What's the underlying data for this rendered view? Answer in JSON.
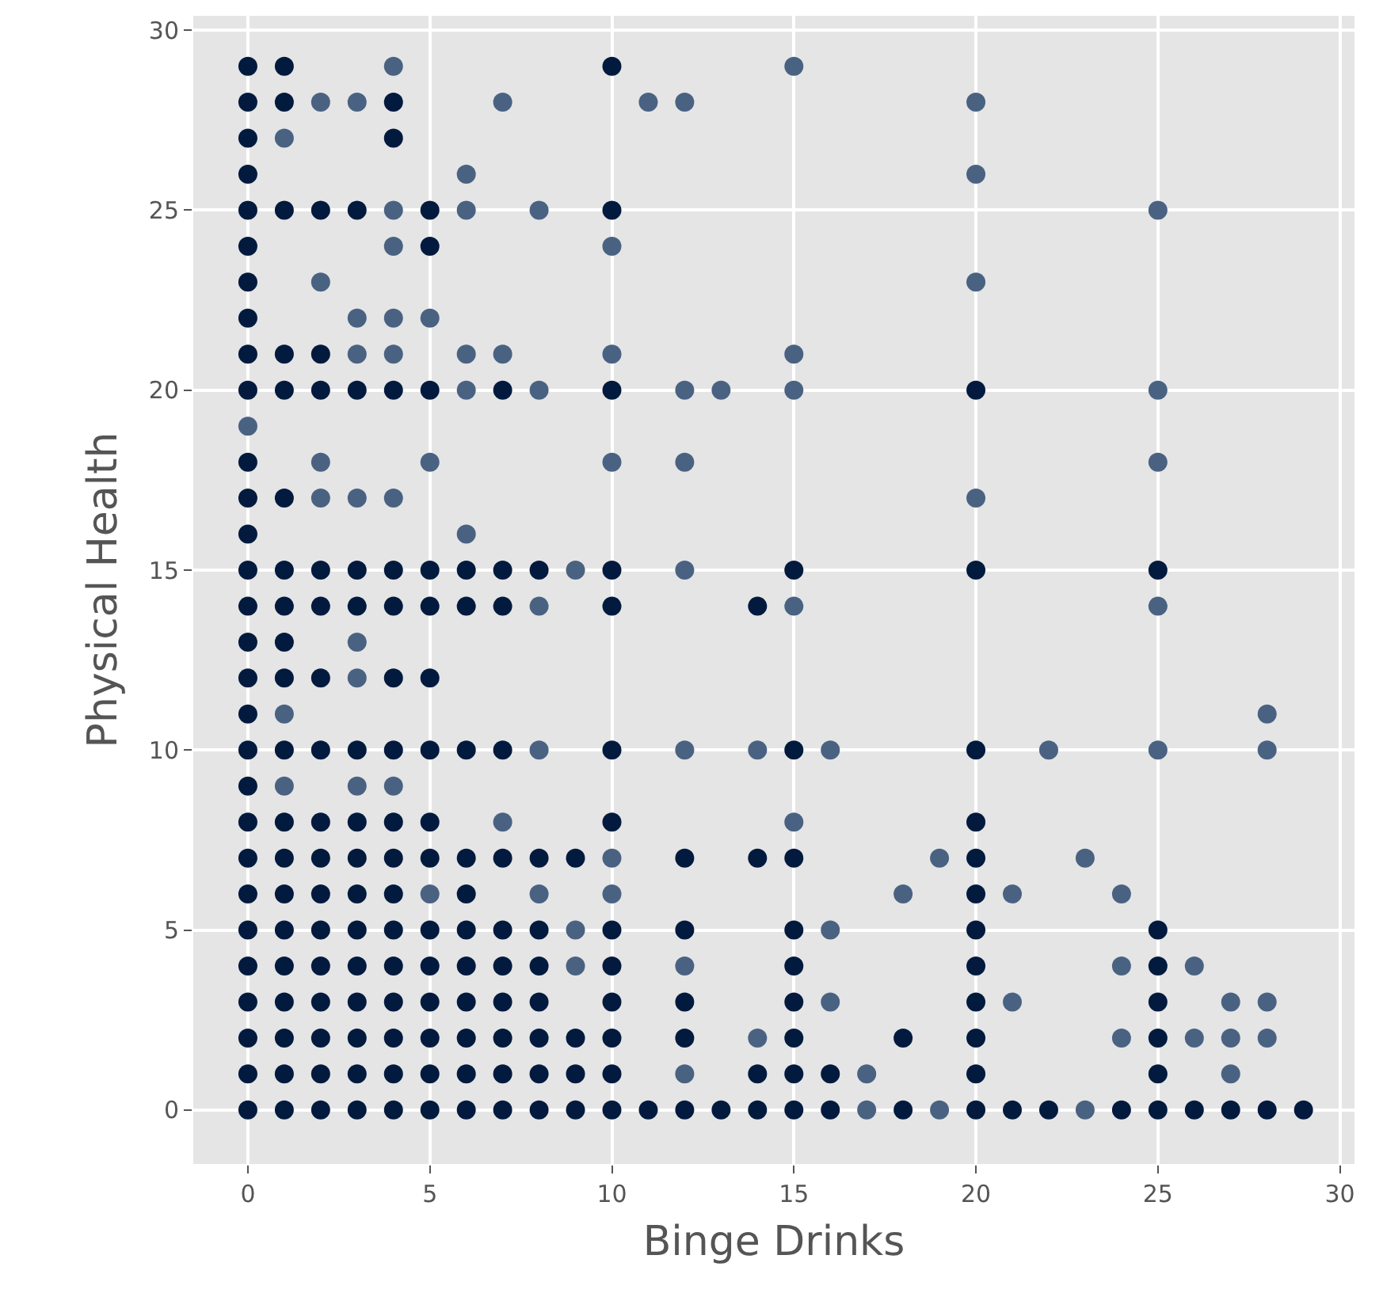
{
  "chart_data": {
    "type": "scatter",
    "xlabel": "Binge Drinks",
    "ylabel": "Physical Health",
    "xlim": [
      -1.5,
      30.4
    ],
    "ylim": [
      -1.5,
      30.4
    ],
    "xticks": [
      0,
      5,
      10,
      15,
      20,
      25,
      30
    ],
    "yticks": [
      0,
      5,
      10,
      15,
      20,
      25,
      30
    ],
    "grid": true,
    "marker": "circle",
    "series": [
      {
        "color": "#021a3e",
        "x": [
          0,
          1,
          10,
          0,
          1,
          4,
          0,
          4,
          0,
          0,
          1,
          2,
          3,
          5,
          10,
          0,
          5,
          0,
          0,
          0,
          1,
          2,
          0,
          1,
          2,
          3,
          4,
          5,
          7,
          10,
          20,
          0,
          0,
          1,
          0,
          0,
          1,
          2,
          3,
          4,
          5,
          6,
          7,
          8,
          10,
          15,
          20,
          25,
          0,
          1,
          2,
          3,
          4,
          5,
          6,
          7,
          10,
          14,
          0,
          1,
          0,
          1,
          2,
          4,
          5,
          0,
          0,
          1,
          2,
          3,
          4,
          5,
          6,
          7,
          10,
          15,
          20,
          0,
          0,
          1,
          2,
          3,
          4,
          5,
          10,
          20,
          0,
          1,
          2,
          3,
          4,
          5,
          6,
          7,
          8,
          9,
          12,
          14,
          15,
          20,
          0,
          1,
          2,
          3,
          4,
          6,
          20,
          0,
          1,
          2,
          3,
          4,
          5,
          6,
          7,
          8,
          10,
          12,
          15,
          20,
          25,
          0,
          1,
          2,
          3,
          4,
          5,
          6,
          7,
          8,
          10,
          15,
          20,
          25,
          0,
          1,
          2,
          3,
          4,
          5,
          6,
          7,
          8,
          10,
          12,
          15,
          20,
          25,
          0,
          1,
          2,
          3,
          4,
          5,
          6,
          7,
          8,
          9,
          10,
          12,
          15,
          18,
          20,
          25,
          0,
          1,
          2,
          3,
          4,
          5,
          6,
          7,
          8,
          9,
          10,
          14,
          15,
          16,
          20,
          25,
          0,
          1,
          2,
          3,
          4,
          5,
          6,
          7,
          8,
          9,
          10,
          11,
          12,
          13,
          14,
          15,
          16,
          18,
          20,
          21,
          22,
          24,
          25,
          26,
          27,
          28,
          29
        ],
        "values": [
          29,
          29,
          29,
          28,
          28,
          28,
          27,
          27,
          26,
          25,
          25,
          25,
          25,
          25,
          25,
          24,
          24,
          23,
          22,
          21,
          21,
          21,
          20,
          20,
          20,
          20,
          20,
          20,
          20,
          20,
          20,
          18,
          17,
          17,
          16,
          15,
          15,
          15,
          15,
          15,
          15,
          15,
          15,
          15,
          15,
          15,
          15,
          15,
          14,
          14,
          14,
          14,
          14,
          14,
          14,
          14,
          14,
          14,
          13,
          13,
          12,
          12,
          12,
          12,
          12,
          11,
          10,
          10,
          10,
          10,
          10,
          10,
          10,
          10,
          10,
          10,
          10,
          9,
          8,
          8,
          8,
          8,
          8,
          8,
          8,
          8,
          7,
          7,
          7,
          7,
          7,
          7,
          7,
          7,
          7,
          7,
          7,
          7,
          7,
          7,
          6,
          6,
          6,
          6,
          6,
          6,
          6,
          5,
          5,
          5,
          5,
          5,
          5,
          5,
          5,
          5,
          5,
          5,
          5,
          5,
          5,
          4,
          4,
          4,
          4,
          4,
          4,
          4,
          4,
          4,
          4,
          4,
          4,
          4,
          3,
          3,
          3,
          3,
          3,
          3,
          3,
          3,
          3,
          3,
          3,
          3,
          3,
          3,
          2,
          2,
          2,
          2,
          2,
          2,
          2,
          2,
          2,
          2,
          2,
          2,
          2,
          2,
          2,
          2,
          1,
          1,
          1,
          1,
          1,
          1,
          1,
          1,
          1,
          1,
          1,
          1,
          1,
          1,
          1,
          1,
          0,
          0,
          0,
          0,
          0,
          0,
          0,
          0,
          0,
          0,
          0,
          0,
          0,
          0,
          0,
          0,
          0,
          0,
          0,
          0,
          0,
          0,
          0,
          0,
          0,
          0,
          0
        ]
      },
      {
        "color": "#4a6282",
        "x": [
          4,
          15,
          2,
          3,
          7,
          11,
          12,
          20,
          1,
          6,
          20,
          4,
          6,
          8,
          25,
          4,
          10,
          2,
          20,
          3,
          4,
          5,
          3,
          4,
          6,
          7,
          10,
          15,
          6,
          8,
          12,
          13,
          15,
          25,
          0,
          2,
          5,
          10,
          12,
          25,
          2,
          3,
          4,
          20,
          6,
          9,
          12,
          8,
          15,
          25,
          3,
          3,
          1,
          28,
          8,
          12,
          14,
          16,
          22,
          25,
          28,
          1,
          3,
          4,
          7,
          15,
          10,
          19,
          23,
          5,
          8,
          10,
          18,
          21,
          24,
          9,
          16,
          9,
          12,
          24,
          26,
          16,
          21,
          27,
          28,
          14,
          24,
          26,
          27,
          28,
          12,
          17,
          27,
          17,
          19,
          23
        ],
        "values": [
          29,
          29,
          28,
          28,
          28,
          28,
          28,
          28,
          27,
          26,
          26,
          25,
          25,
          25,
          25,
          24,
          24,
          23,
          23,
          22,
          22,
          22,
          21,
          21,
          21,
          21,
          21,
          21,
          20,
          20,
          20,
          20,
          20,
          20,
          19,
          18,
          18,
          18,
          18,
          18,
          17,
          17,
          17,
          17,
          16,
          15,
          15,
          14,
          14,
          14,
          13,
          12,
          11,
          11,
          10,
          10,
          10,
          10,
          10,
          10,
          10,
          9,
          9,
          9,
          8,
          8,
          7,
          7,
          7,
          6,
          6,
          6,
          6,
          6,
          6,
          5,
          5,
          4,
          4,
          4,
          4,
          3,
          3,
          3,
          3,
          2,
          2,
          2,
          2,
          2,
          1,
          1,
          1,
          0,
          0,
          0
        ]
      }
    ]
  }
}
